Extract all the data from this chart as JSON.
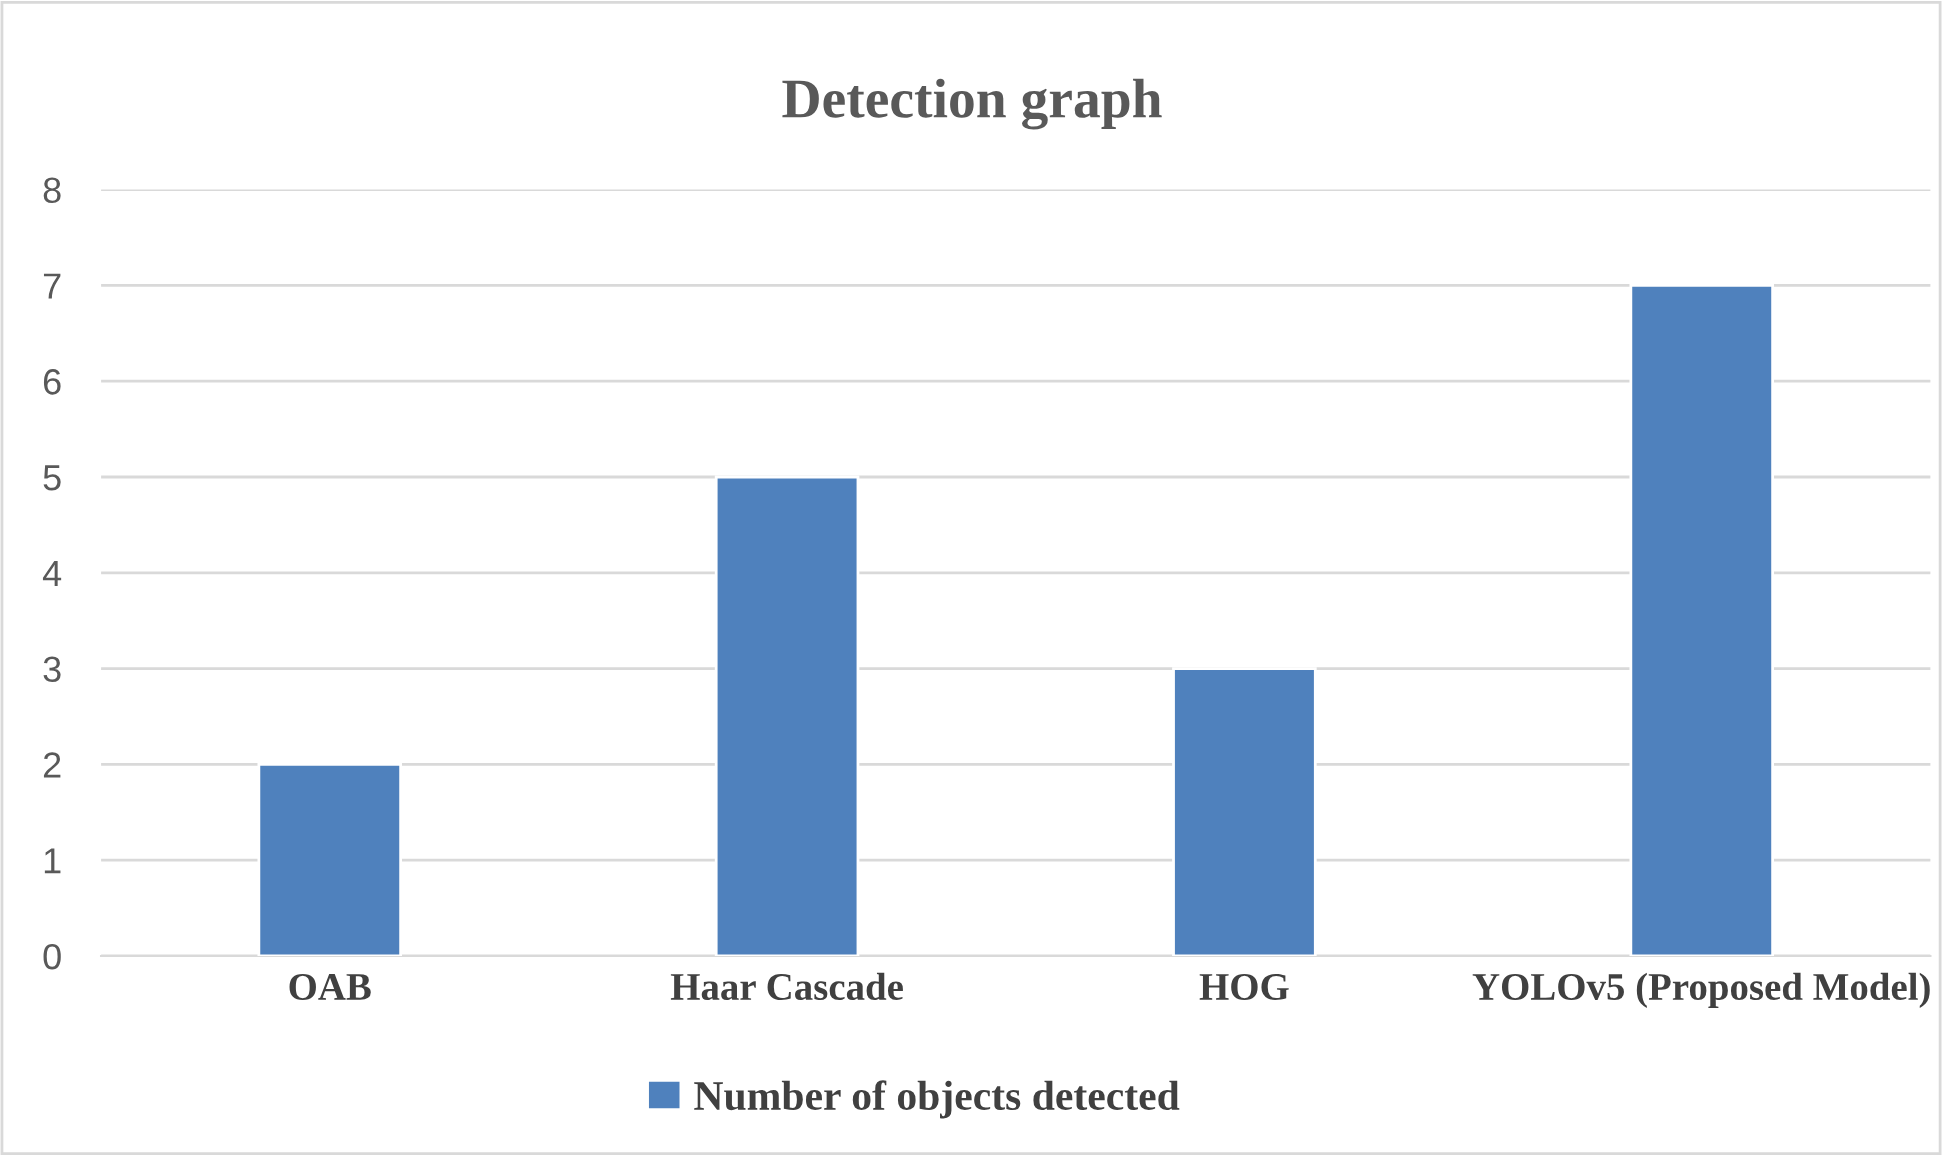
{
  "chart_data": {
    "type": "bar",
    "title": "Detection graph",
    "categories": [
      "OAB",
      "Haar Cascade",
      "HOG",
      "YOLOv5 (Proposed Model)"
    ],
    "series": [
      {
        "name": "Number of objects detected",
        "color": "#4f81bd",
        "values": [
          2,
          5,
          3,
          7
        ]
      }
    ],
    "ylim": [
      0,
      8
    ],
    "yticks": [
      0,
      1,
      2,
      3,
      4,
      5,
      6,
      7,
      8
    ],
    "grid": "y",
    "legend": "bottom"
  }
}
